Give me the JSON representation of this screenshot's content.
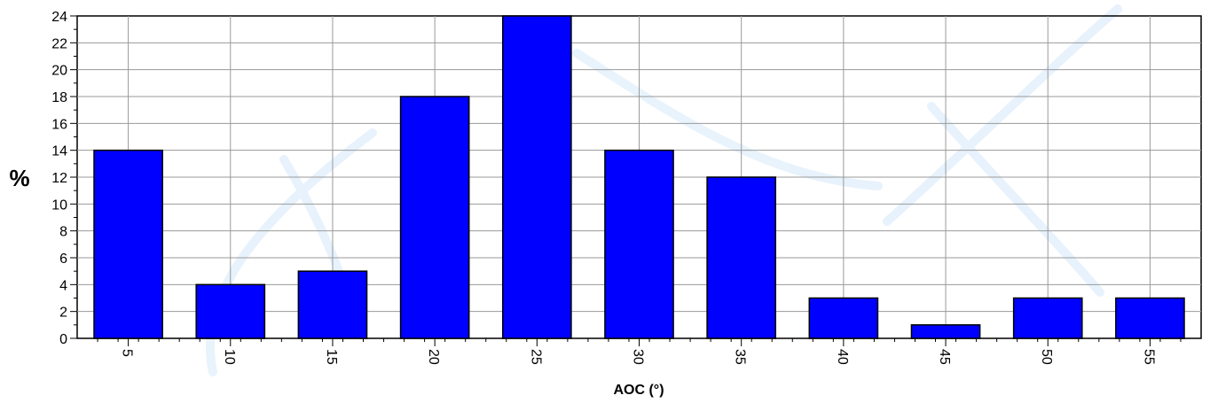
{
  "chart_data": {
    "type": "bar",
    "categories": [
      "5",
      "10",
      "15",
      "20",
      "25",
      "30",
      "35",
      "40",
      "45",
      "50",
      "55"
    ],
    "values": [
      14,
      4,
      5,
      18,
      24,
      14,
      12,
      3,
      1,
      3,
      3
    ],
    "xlabel": "AOC (°)",
    "ylabel": "%",
    "ylim": [
      0,
      24
    ],
    "yticks": [
      0,
      2,
      4,
      6,
      8,
      10,
      12,
      14,
      16,
      18,
      20,
      22,
      24
    ],
    "grid": true,
    "bar_color": "#0000ff",
    "bar_edge_color": "#000000"
  }
}
